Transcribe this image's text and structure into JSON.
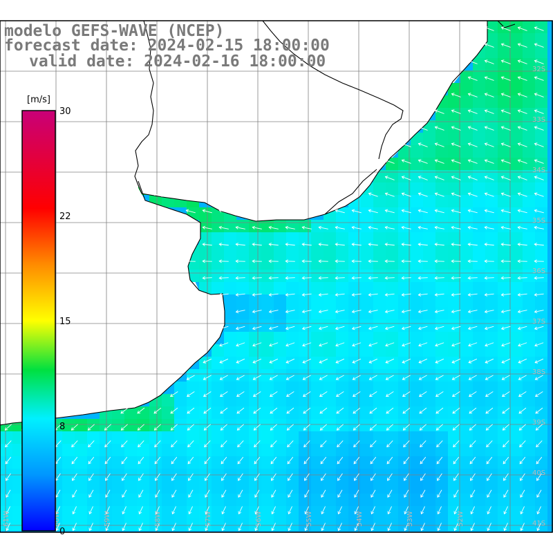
{
  "title": {
    "line1": "modelo GEFS-WAVE (NCEP)",
    "line2": "forecast date: 2024-02-15 18:00:00",
    "line3": "valid date: 2024-02-16 18:00:00"
  },
  "colorbar": {
    "unit": "[m/s]",
    "tick_labels": [
      "30",
      "22",
      "15",
      "8",
      "0"
    ],
    "stops": [
      {
        "value": 0,
        "color": "#0000ff"
      },
      {
        "value": 4,
        "color": "#0096ff"
      },
      {
        "value": 8,
        "color": "#00f0ff"
      },
      {
        "value": 11.5,
        "color": "#00e040"
      },
      {
        "value": 15,
        "color": "#ffff00"
      },
      {
        "value": 19,
        "color": "#ff8c00"
      },
      {
        "value": 23,
        "color": "#ff0000"
      },
      {
        "value": 30,
        "color": "#c80078"
      }
    ],
    "min": 0,
    "max": 30
  },
  "map": {
    "lat_labels": [
      "32S",
      "33S",
      "34S",
      "35S",
      "36S",
      "37S",
      "38S",
      "39S",
      "40S",
      "41S"
    ],
    "lon_labels": [
      "61W",
      "60W",
      "59W",
      "58W",
      "57W",
      "56W",
      "55W",
      "54W",
      "53W",
      "52W"
    ],
    "lon_range": [
      -61.5,
      -50.5
    ],
    "lat_range": [
      -41.5,
      -31.5
    ],
    "land_color": "#ffffff",
    "grid_color": "#808080",
    "coast_color": "#000000",
    "arrow_color": "#ffffff"
  }
}
